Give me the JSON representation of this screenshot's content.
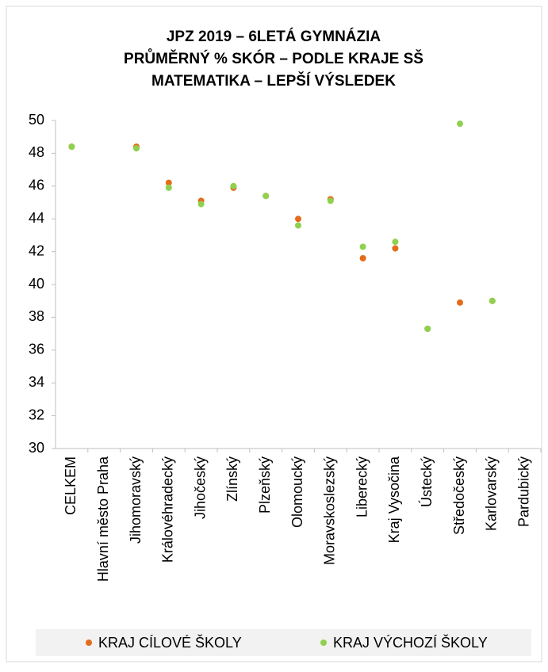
{
  "chart_data": {
    "type": "scatter",
    "title": [
      "JPZ 2019 – 6LETÁ GYMNÁZIA",
      "PRŮMĚRNÝ % SKÓR – PODLE KRAJE SŠ",
      "MATEMATIKA – LEPŠÍ VÝSLEDEK"
    ],
    "categories": [
      "CELKEM",
      "Hlavní město Praha",
      "Jihomoravský",
      "Královéhradecký",
      "Jihočeský",
      "Zlínský",
      "Plzeňský",
      "Olomoucký",
      "Moravskoslezský",
      "Liberecký",
      "Kraj Vysočina",
      "Ústecký",
      "Středočeský",
      "Karlovarský",
      "Pardubický"
    ],
    "series": [
      {
        "name": "KRAJ CÍLOVÉ ŠKOLY",
        "color": "#e36c1a",
        "values": [
          48.4,
          null,
          48.4,
          46.2,
          45.1,
          45.9,
          45.4,
          44.0,
          45.2,
          41.6,
          42.2,
          37.3,
          38.9,
          39.0,
          null
        ]
      },
      {
        "name": "KRAJ VÝCHOZÍ ŠKOLY",
        "color": "#8fd14f",
        "values": [
          48.4,
          null,
          48.3,
          45.9,
          44.9,
          46.0,
          45.4,
          43.6,
          45.1,
          42.3,
          42.6,
          37.3,
          49.8,
          39.0,
          null
        ]
      }
    ],
    "ylim": [
      30,
      50
    ],
    "yticks": [
      30,
      32,
      34,
      36,
      38,
      40,
      42,
      44,
      46,
      48,
      50
    ],
    "legend": "bottom"
  }
}
